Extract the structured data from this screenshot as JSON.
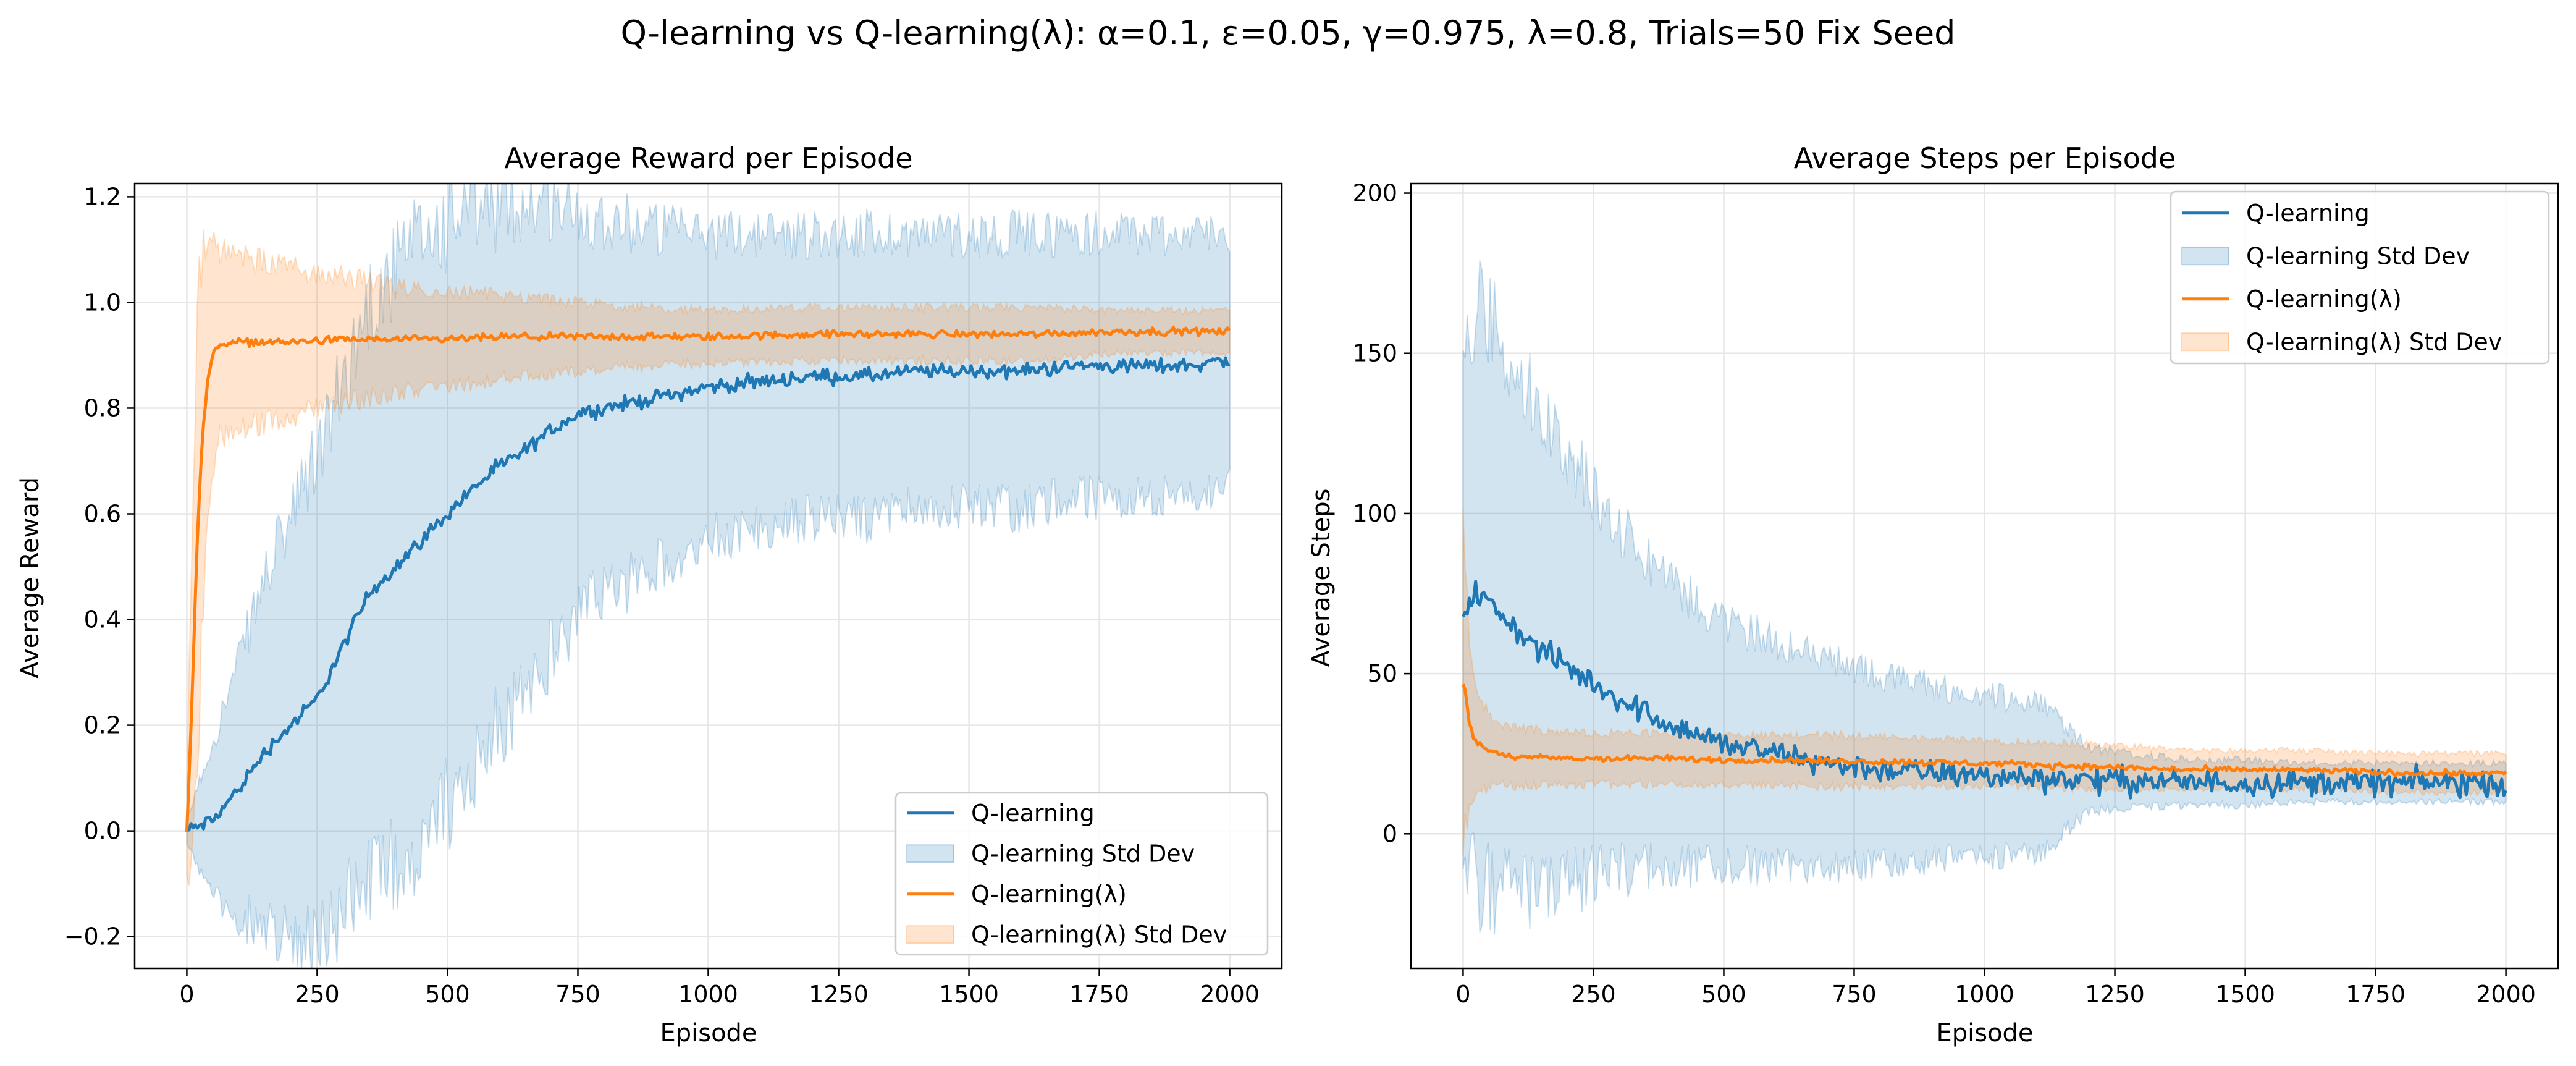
{
  "figure": {
    "suptitle": "Q-learning vs Q-learning(λ): α=0.1, ε=0.05, γ=0.975, λ=0.8, Trials=50 Fix Seed",
    "colors": {
      "q_learning": "#1f77b4",
      "q_learning_lambda": "#ff7f0e",
      "grid": "#e6e6e6",
      "axes": "#000000"
    }
  },
  "chart_data": [
    {
      "type": "line",
      "title": "Average Reward per Episode",
      "xlabel": "Episode",
      "ylabel": "Average Reward",
      "xlim": [
        -100,
        2100
      ],
      "ylim": [
        -0.26,
        1.225
      ],
      "xticks": [
        0,
        250,
        500,
        750,
        1000,
        1250,
        1500,
        1750,
        2000
      ],
      "xtick_labels": [
        "0",
        "250",
        "500",
        "750",
        "1000",
        "1250",
        "1500",
        "1750",
        "2000"
      ],
      "yticks": [
        -0.2,
        0.0,
        0.2,
        0.4,
        0.6,
        0.8,
        1.0,
        1.2
      ],
      "ytick_labels": [
        "−0.2",
        "0.0",
        "0.2",
        "0.4",
        "0.6",
        "0.8",
        "1.0",
        "1.2"
      ],
      "grid": true,
      "legend_position": "lower-right",
      "legend": [
        "Q-learning",
        "Q-learning Std Dev",
        "Q-learning(λ)",
        "Q-learning(λ) Std Dev"
      ],
      "series": [
        {
          "name": "Q-learning",
          "color": "#1f77b4",
          "x": [
            0,
            50,
            100,
            150,
            200,
            250,
            300,
            350,
            400,
            450,
            500,
            550,
            600,
            650,
            700,
            750,
            800,
            850,
            900,
            950,
            1000,
            1100,
            1200,
            1300,
            1400,
            1500,
            1600,
            1700,
            1800,
            1900,
            2000
          ],
          "mean": [
            0.0,
            0.02,
            0.08,
            0.15,
            0.2,
            0.25,
            0.35,
            0.45,
            0.5,
            0.55,
            0.6,
            0.65,
            0.69,
            0.72,
            0.76,
            0.79,
            0.8,
            0.81,
            0.82,
            0.83,
            0.84,
            0.85,
            0.86,
            0.86,
            0.87,
            0.87,
            0.87,
            0.88,
            0.88,
            0.88,
            0.89
          ],
          "std": [
            0.02,
            0.15,
            0.24,
            0.33,
            0.39,
            0.46,
            0.5,
            0.55,
            0.56,
            0.57,
            0.55,
            0.52,
            0.49,
            0.47,
            0.43,
            0.38,
            0.36,
            0.34,
            0.32,
            0.3,
            0.29,
            0.28,
            0.27,
            0.27,
            0.26,
            0.26,
            0.26,
            0.25,
            0.25,
            0.25,
            0.24
          ],
          "noise": 0.012
        },
        {
          "name": "Q-learning(λ)",
          "color": "#ff7f0e",
          "x": [
            0,
            10,
            20,
            30,
            40,
            50,
            60,
            80,
            100,
            150,
            200,
            300,
            400,
            500,
            600,
            800,
            1000,
            1200,
            1400,
            1600,
            1800,
            2000
          ],
          "mean": [
            0.0,
            0.25,
            0.55,
            0.75,
            0.85,
            0.9,
            0.92,
            0.925,
            0.925,
            0.925,
            0.925,
            0.93,
            0.93,
            0.93,
            0.935,
            0.935,
            0.935,
            0.94,
            0.94,
            0.94,
            0.945,
            0.945
          ],
          "std": [
            0.1,
            0.35,
            0.45,
            0.35,
            0.25,
            0.2,
            0.18,
            0.16,
            0.16,
            0.15,
            0.14,
            0.12,
            0.1,
            0.09,
            0.08,
            0.06,
            0.05,
            0.05,
            0.05,
            0.05,
            0.04,
            0.04
          ],
          "noise": 0.006
        }
      ]
    },
    {
      "type": "line",
      "title": "Average Steps per Episode",
      "xlabel": "Episode",
      "ylabel": "Average Steps",
      "xlim": [
        -100,
        2100
      ],
      "ylim": [
        -42,
        203
      ],
      "xticks": [
        0,
        250,
        500,
        750,
        1000,
        1250,
        1500,
        1750,
        2000
      ],
      "xtick_labels": [
        "0",
        "250",
        "500",
        "750",
        "1000",
        "1250",
        "1500",
        "1750",
        "2000"
      ],
      "yticks": [
        0,
        50,
        100,
        150,
        200
      ],
      "ytick_labels": [
        "0",
        "50",
        "100",
        "150",
        "200"
      ],
      "grid": true,
      "legend_position": "upper-right",
      "legend": [
        "Q-learning",
        "Q-learning Std Dev",
        "Q-learning(λ)",
        "Q-learning(λ) Std Dev"
      ],
      "series": [
        {
          "name": "Q-learning",
          "color": "#1f77b4",
          "x": [
            0,
            25,
            50,
            100,
            150,
            200,
            250,
            300,
            350,
            400,
            450,
            500,
            600,
            700,
            800,
            900,
            1000,
            1100,
            1200,
            1300,
            1400,
            1500,
            1600,
            1700,
            1800,
            1900,
            2000
          ],
          "mean": [
            70,
            75,
            72,
            64,
            57,
            52,
            47,
            42,
            38,
            34,
            31,
            28,
            25,
            22,
            20,
            19,
            18,
            17.5,
            17,
            16.5,
            16,
            16,
            16,
            16,
            16,
            16,
            16
          ],
          "std": [
            80,
            90,
            90,
            82,
            74,
            67,
            60,
            54,
            49,
            44,
            41,
            38,
            35,
            32,
            29,
            27,
            25,
            24,
            10,
            8,
            7,
            7,
            6,
            6,
            6,
            6,
            6
          ],
          "noise": 3.5
        },
        {
          "name": "Q-learning(λ)",
          "color": "#ff7f0e",
          "x": [
            0,
            5,
            10,
            20,
            30,
            50,
            70,
            100,
            200,
            300,
            400,
            500,
            600,
            800,
            1000,
            1200,
            1400,
            1600,
            1800,
            2000
          ],
          "mean": [
            47,
            44,
            35,
            30,
            28,
            26,
            25,
            24,
            23.5,
            23.5,
            23.5,
            23,
            23,
            22.5,
            22,
            21,
            20,
            20,
            19,
            19
          ],
          "std": [
            50,
            40,
            30,
            22,
            15,
            12,
            10,
            9,
            8,
            8,
            8,
            8,
            8,
            8,
            7,
            7,
            6,
            6,
            6,
            6
          ],
          "noise": 0.8
        }
      ]
    }
  ]
}
